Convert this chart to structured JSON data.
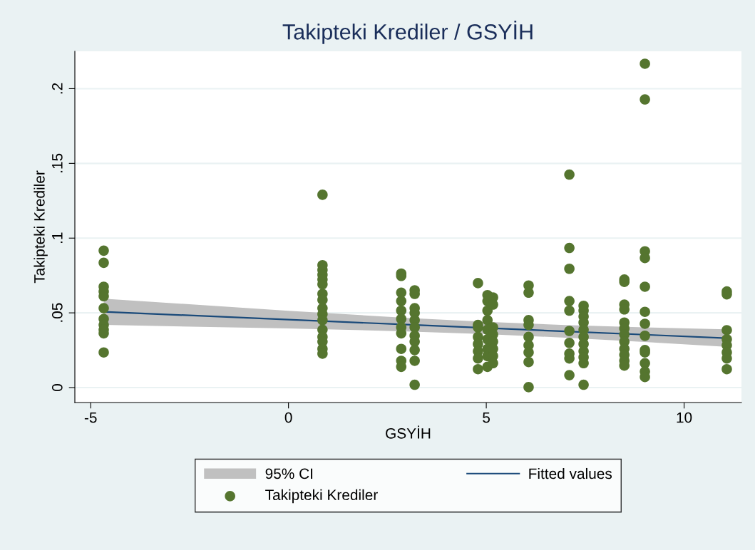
{
  "chart_data": {
    "type": "scatter",
    "title": "Takipteki Krediler / GSYİH",
    "xlabel": "GSYİH",
    "ylabel": "Takipteki Krediler",
    "xlim": [
      -5.4,
      11.45
    ],
    "ylim": [
      -0.01,
      0.225
    ],
    "xticks": [
      -5,
      0,
      5,
      10
    ],
    "yticks": [
      {
        "value": 0,
        "label": "0"
      },
      {
        "value": 0.05,
        "label": ".05"
      },
      {
        "value": 0.1,
        "label": ".1"
      },
      {
        "value": 0.15,
        "label": ".15"
      },
      {
        "value": 0.2,
        "label": ".2"
      }
    ],
    "grid": "y",
    "annotations": [
      "95% CI"
    ],
    "legend": "bottom",
    "marker": "circle",
    "series": [
      {
        "name": "Fitted values",
        "type": "line",
        "color": "#1a4a7a",
        "line_style": "solid",
        "marker": "none",
        "x": [
          -4.67,
          0,
          3,
          5,
          7,
          9,
          11.08
        ],
        "values": [
          0.0507,
          0.0455,
          0.0421,
          0.0399,
          0.0376,
          0.0354,
          0.0331
        ],
        "lower": [
          0.0419,
          0.0396,
          0.0376,
          0.0358,
          0.0334,
          0.0305,
          0.0272
        ],
        "upper": [
          0.0595,
          0.0514,
          0.0466,
          0.044,
          0.0418,
          0.0403,
          0.039
        ]
      },
      {
        "name": "Takipteki Krediler",
        "color": "#55752f",
        "x": [
          -4.67,
          -4.67,
          -4.67,
          -4.67,
          -4.67,
          -4.67,
          -4.67,
          -4.67,
          -4.67,
          -4.67,
          -4.67,
          0.86,
          0.86,
          0.86,
          0.86,
          0.86,
          0.86,
          0.86,
          0.86,
          0.86,
          0.86,
          0.86,
          0.86,
          0.86,
          0.86,
          0.86,
          0.86,
          2.85,
          2.85,
          2.85,
          2.85,
          2.85,
          2.85,
          2.85,
          2.85,
          2.85,
          2.85,
          2.85,
          3.19,
          3.19,
          3.19,
          3.19,
          3.19,
          3.19,
          3.19,
          3.19,
          3.19,
          3.19,
          3.19,
          4.79,
          4.79,
          4.79,
          4.79,
          4.79,
          4.79,
          4.79,
          4.79,
          5.03,
          5.03,
          5.03,
          5.03,
          5.03,
          5.03,
          5.03,
          5.03,
          5.03,
          5.17,
          5.17,
          5.17,
          5.17,
          5.17,
          5.17,
          5.17,
          5.17,
          6.07,
          6.07,
          6.07,
          6.07,
          6.07,
          6.07,
          6.07,
          6.07,
          6.07,
          7.1,
          7.1,
          7.1,
          7.1,
          7.1,
          7.1,
          7.1,
          7.1,
          7.1,
          7.1,
          7.46,
          7.46,
          7.46,
          7.46,
          7.46,
          7.46,
          7.46,
          7.46,
          7.46,
          7.46,
          7.46,
          8.49,
          8.49,
          8.49,
          8.49,
          8.49,
          8.49,
          8.49,
          8.49,
          8.49,
          8.49,
          8.49,
          8.49,
          9.01,
          9.01,
          9.01,
          9.01,
          9.01,
          9.01,
          9.01,
          9.01,
          9.01,
          9.01,
          9.01,
          9.01,
          9.01,
          11.08,
          11.08,
          11.08,
          11.08,
          11.08,
          11.08,
          11.08,
          11.08
        ],
        "values": [
          0.0916,
          0.0835,
          0.0675,
          0.0643,
          0.0611,
          0.0531,
          0.0459,
          0.0419,
          0.0387,
          0.0363,
          0.0235,
          0.129,
          0.0819,
          0.0787,
          0.0755,
          0.0723,
          0.0691,
          0.0627,
          0.0587,
          0.0531,
          0.0491,
          0.0451,
          0.0387,
          0.0339,
          0.0307,
          0.0259,
          0.0227,
          0.0763,
          0.0747,
          0.0635,
          0.0579,
          0.0515,
          0.0459,
          0.0403,
          0.0363,
          0.0259,
          0.0179,
          0.0139,
          0.0651,
          0.0627,
          0.0531,
          0.0499,
          0.0451,
          0.0403,
          0.0347,
          0.0307,
          0.0251,
          0.0179,
          0.0019,
          0.0699,
          0.0419,
          0.0403,
          0.0339,
          0.0291,
          0.0243,
          0.0195,
          0.0123,
          0.0619,
          0.0579,
          0.0515,
          0.0451,
          0.0387,
          0.0323,
          0.0259,
          0.0211,
          0.0139,
          0.0603,
          0.0555,
          0.0403,
          0.0355,
          0.0307,
          0.0259,
          0.0211,
          0.0163,
          0.0683,
          0.0635,
          0.0451,
          0.0419,
          0.0339,
          0.0283,
          0.0235,
          0.0171,
          0.0003,
          0.1425,
          0.0934,
          0.0795,
          0.0579,
          0.0515,
          0.0379,
          0.0299,
          0.0227,
          0.0195,
          0.0083,
          0.0547,
          0.0515,
          0.0475,
          0.0435,
          0.0387,
          0.0339,
          0.0291,
          0.0243,
          0.0203,
          0.0163,
          0.0019,
          0.0723,
          0.0707,
          0.0555,
          0.0523,
          0.0435,
          0.0395,
          0.0355,
          0.0307,
          0.0259,
          0.0219,
          0.0179,
          0.0147,
          0.2167,
          0.1928,
          0.0912,
          0.0867,
          0.0675,
          0.0507,
          0.0427,
          0.0347,
          0.0251,
          0.0235,
          0.0163,
          0.0107,
          0.0071,
          0.0643,
          0.0624,
          0.0384,
          0.0323,
          0.0283,
          0.0235,
          0.0195,
          0.0123
        ]
      }
    ]
  }
}
